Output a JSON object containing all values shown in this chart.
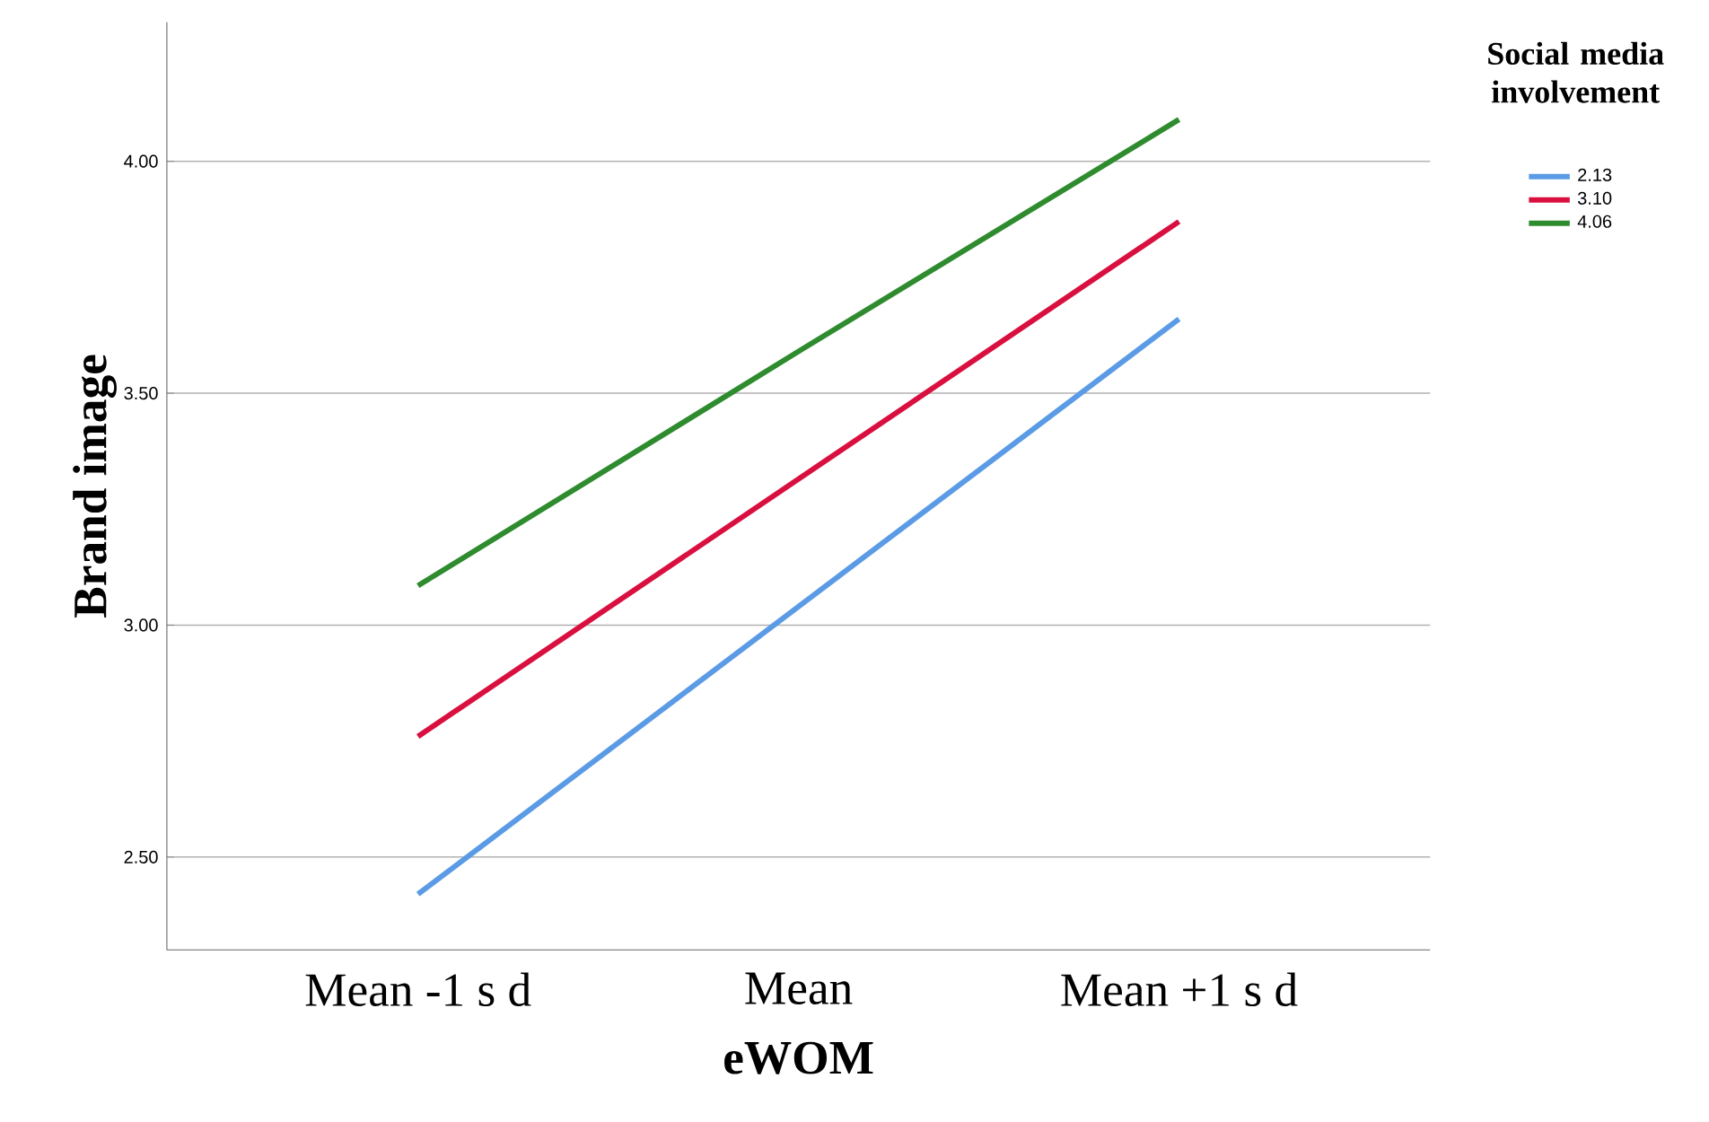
{
  "chart_data": {
    "type": "line",
    "xlabel": "eWOM",
    "ylabel": "Brand image",
    "legend_title": "Social media involvement",
    "categories": [
      "Mean -1 s d",
      "Mean",
      "Mean +1 s d"
    ],
    "series": [
      {
        "name": "2.13",
        "color": "#5b9be6",
        "values": [
          2.42,
          3.04,
          3.66
        ]
      },
      {
        "name": "3.10",
        "color": "#d9103f",
        "values": [
          2.76,
          3.315,
          3.87
        ]
      },
      {
        "name": "4.06",
        "color": "#2e8b2e",
        "values": [
          3.085,
          3.59,
          4.09
        ]
      }
    ],
    "ylim": [
      2.3,
      4.3
    ],
    "yticks": [
      {
        "value": 2.5,
        "label": "2.50"
      },
      {
        "value": 3.0,
        "label": "3.00"
      },
      {
        "value": 3.5,
        "label": "3.50"
      },
      {
        "value": 4.0,
        "label": "4.00"
      }
    ],
    "grid": "y",
    "legend": "top right"
  }
}
